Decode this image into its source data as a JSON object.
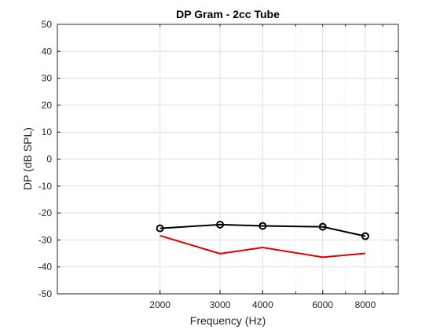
{
  "chart_data": {
    "type": "line",
    "title": "DP Gram - 2cc Tube",
    "xlabel": "Frequency (Hz)",
    "ylabel": "DP (dB SPL)",
    "x_scale": "log",
    "xlim": [
      1000,
      10000
    ],
    "ylim": [
      -50,
      50
    ],
    "x_ticks": [
      2000,
      3000,
      4000,
      6000,
      8000
    ],
    "x_tick_labels": [
      "2000",
      "3000",
      "4000",
      "6000",
      "8000"
    ],
    "x_minor_grid": [
      1000,
      2000,
      3000,
      4000,
      5000,
      6000,
      7000,
      8000,
      9000,
      10000
    ],
    "y_ticks": [
      -50,
      -40,
      -30,
      -20,
      -10,
      0,
      10,
      20,
      30,
      40,
      50
    ],
    "y_tick_labels": [
      "-50",
      "-40",
      "-30",
      "-20",
      "-10",
      "0",
      "10",
      "20",
      "30",
      "40",
      "50"
    ],
    "grid": true,
    "legend": false,
    "series": [
      {
        "x": [
          2000,
          3000,
          4000,
          6000,
          8000
        ],
        "values": [
          -25.7,
          -24.3,
          -24.8,
          -25.1,
          -28.6
        ],
        "color": "#000000",
        "marker": "circle"
      },
      {
        "x": [
          2000,
          3000,
          4000,
          6000,
          8000
        ],
        "values": [
          -28.4,
          -35.1,
          -32.8,
          -36.4,
          -35.0
        ],
        "color": "#e00000",
        "marker": "none"
      }
    ]
  }
}
